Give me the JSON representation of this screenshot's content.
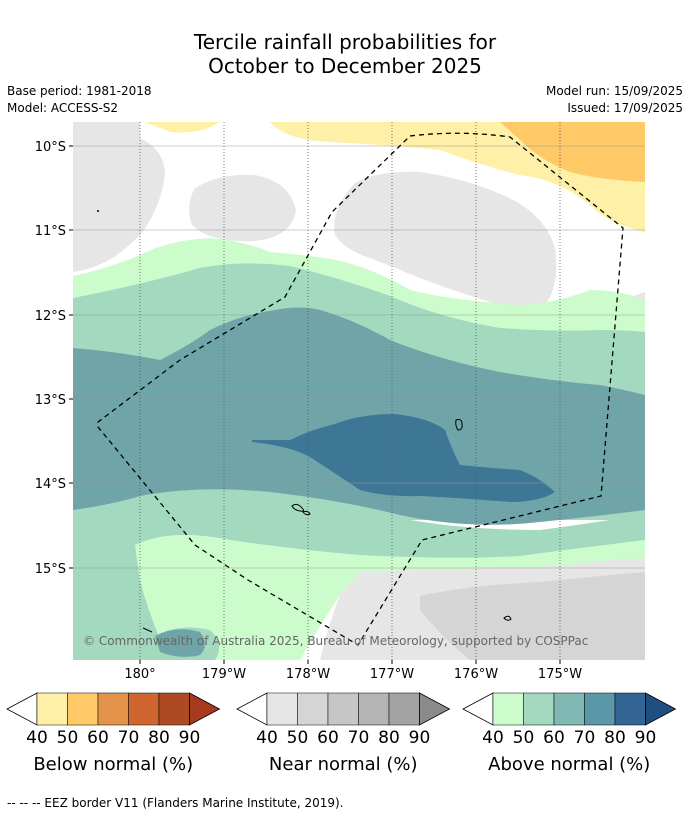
{
  "title": {
    "line1": "Tercile rainfall probabilities for",
    "line2": "October to December 2025"
  },
  "meta": {
    "base_period": "Base period: 1981-2018",
    "model": "Model: ACCESS-S2",
    "model_run": "Model run: 15/09/2025",
    "issued": "Issued: 17/09/2025"
  },
  "map": {
    "lat_labels": [
      "10°S",
      "11°S",
      "12°S",
      "13°S",
      "14°S",
      "15°S"
    ],
    "lon_labels": [
      "180°",
      "179°W",
      "178°W",
      "177°W",
      "176°W",
      "175°W"
    ],
    "copyright": "© Commonwealth of Australia 2025, Bureau of Meteorology, supported by COSPPac"
  },
  "colorbars": [
    {
      "title": "Below normal (%)",
      "ticks": [
        "40",
        "50",
        "60",
        "70",
        "80",
        "90"
      ],
      "colors": [
        "#fff0a8",
        "#fec966",
        "#e3934a",
        "#d0652f",
        "#ad4a23",
        "#a63a1f"
      ]
    },
    {
      "title": "Near normal (%)",
      "ticks": [
        "40",
        "50",
        "60",
        "70",
        "80",
        "90"
      ],
      "colors": [
        "#e6e6e6",
        "#d5d5d5",
        "#c6c6c6",
        "#b4b4b4",
        "#a3a3a3",
        "#8a8a8a"
      ]
    },
    {
      "title": "Above normal (%)",
      "ticks": [
        "40",
        "50",
        "60",
        "70",
        "80",
        "90"
      ],
      "colors": [
        "#ccfccc",
        "#a3d9be",
        "#80b9b3",
        "#5a98a8",
        "#336595",
        "#1f4f80"
      ]
    }
  ],
  "footnote": "--  --  -- EEZ border V11 (Flanders Marine Institute, 2019)."
}
